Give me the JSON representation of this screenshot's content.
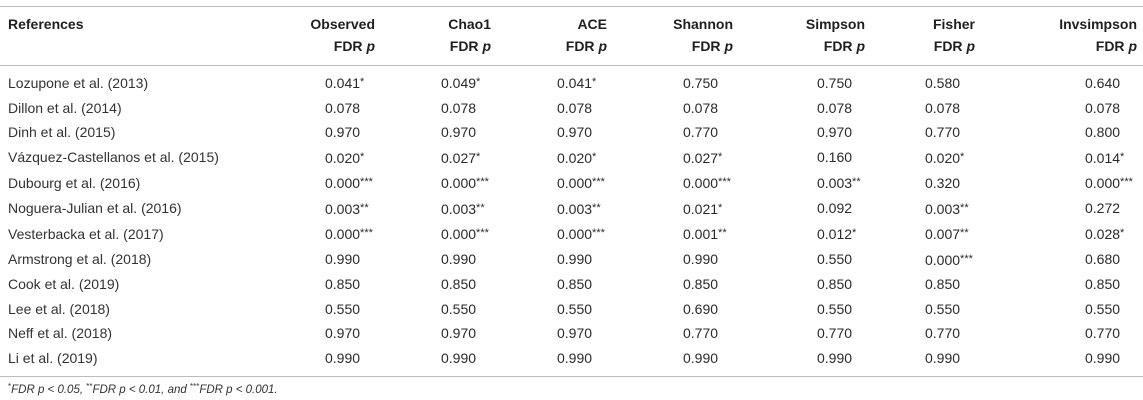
{
  "headers": {
    "references": "References",
    "columns": [
      {
        "name": "Observed",
        "sub": "FDR p"
      },
      {
        "name": "Chao1",
        "sub": "FDR p"
      },
      {
        "name": "ACE",
        "sub": "FDR p"
      },
      {
        "name": "Shannon",
        "sub": "FDR p"
      },
      {
        "name": "Simpson",
        "sub": "FDR p"
      },
      {
        "name": "Fisher",
        "sub": "FDR p"
      },
      {
        "name": "Invsimpson",
        "sub": "FDR p"
      }
    ]
  },
  "rows": [
    {
      "ref": "Lozupone et al. (2013)",
      "values": [
        "0.041*",
        "0.049*",
        "0.041*",
        "0.750",
        "0.750",
        "0.580",
        "0.640"
      ]
    },
    {
      "ref": "Dillon et al. (2014)",
      "values": [
        "0.078",
        "0.078",
        "0.078",
        "0.078",
        "0.078",
        "0.078",
        "0.078"
      ]
    },
    {
      "ref": "Dinh et al. (2015)",
      "values": [
        "0.970",
        "0.970",
        "0.970",
        "0.770",
        "0.970",
        "0.770",
        "0.800"
      ]
    },
    {
      "ref": "Vázquez-Castellanos et al. (2015)",
      "values": [
        "0.020*",
        "0.027*",
        "0.020*",
        "0.027*",
        "0.160",
        "0.020*",
        "0.014*"
      ]
    },
    {
      "ref": "Dubourg et al. (2016)",
      "values": [
        "0.000***",
        "0.000***",
        "0.000***",
        "0.000***",
        "0.003**",
        "0.320",
        "0.000***"
      ]
    },
    {
      "ref": "Noguera-Julian et al. (2016)",
      "values": [
        "0.003**",
        "0.003**",
        "0.003**",
        "0.021*",
        "0.092",
        "0.003**",
        "0.272"
      ]
    },
    {
      "ref": "Vesterbacka et al. (2017)",
      "values": [
        "0.000***",
        "0.000***",
        "0.000***",
        "0.001**",
        "0.012*",
        "0.007**",
        "0.028*"
      ]
    },
    {
      "ref": "Armstrong et al. (2018)",
      "values": [
        "0.990",
        "0.990",
        "0.990",
        "0.990",
        "0.550",
        "0.000***",
        "0.680"
      ]
    },
    {
      "ref": "Cook et al. (2019)",
      "values": [
        "0.850",
        "0.850",
        "0.850",
        "0.850",
        "0.850",
        "0.850",
        "0.850"
      ]
    },
    {
      "ref": "Lee et al. (2018)",
      "values": [
        "0.550",
        "0.550",
        "0.550",
        "0.690",
        "0.550",
        "0.550",
        "0.550"
      ]
    },
    {
      "ref": "Neff et al. (2018)",
      "values": [
        "0.970",
        "0.970",
        "0.970",
        "0.770",
        "0.770",
        "0.770",
        "0.770"
      ]
    },
    {
      "ref": "Li et al. (2019)",
      "values": [
        "0.990",
        "0.990",
        "0.990",
        "0.990",
        "0.990",
        "0.990",
        "0.990"
      ]
    }
  ],
  "footnote": "*FDR p < 0.05, **FDR p < 0.01, and ***FDR p < 0.001."
}
